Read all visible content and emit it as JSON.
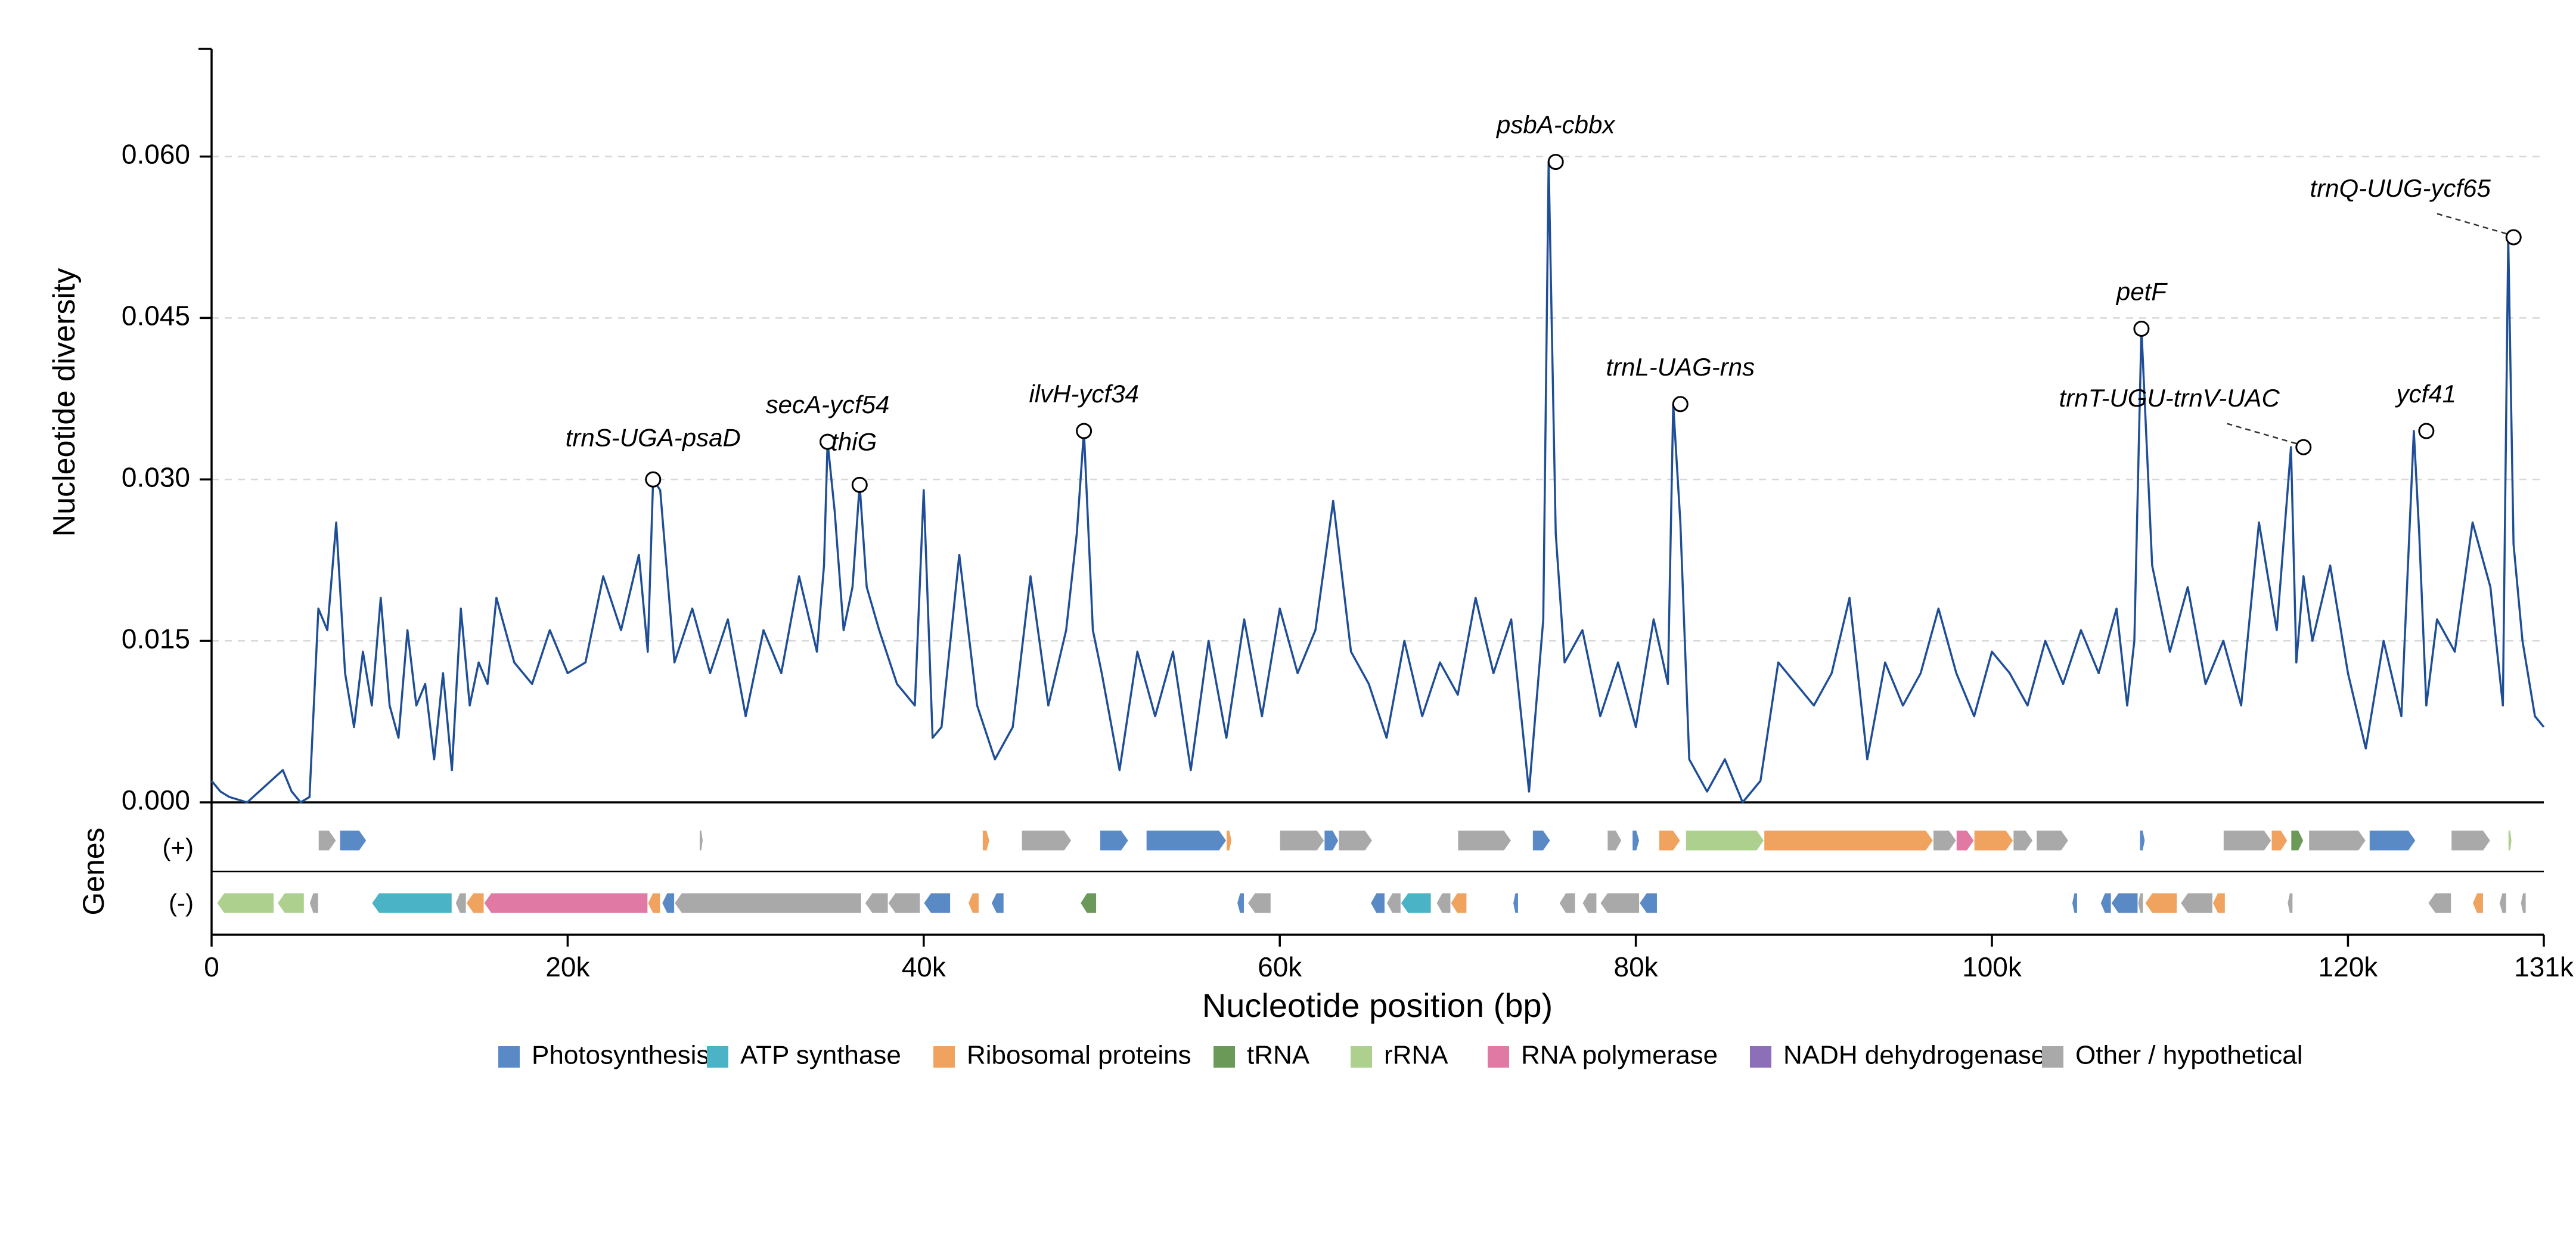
{
  "chart_data": {
    "type": "line",
    "ylabel": "Nucleotide diversity",
    "xlabel": "Nucleotide position (bp)",
    "genes_label": "Genes",
    "strand_plus_label": "(+)",
    "strand_minus_label": "(-)",
    "xlim": [
      0,
      131000
    ],
    "ylim": [
      0,
      0.07
    ],
    "y_ticks": [
      {
        "value": 0.0,
        "label": "0.000"
      },
      {
        "value": 0.015,
        "label": "0.015"
      },
      {
        "value": 0.03,
        "label": "0.030"
      },
      {
        "value": 0.045,
        "label": "0.045"
      },
      {
        "value": 0.06,
        "label": "0.060"
      }
    ],
    "x_ticks": [
      {
        "value": 0,
        "label": "0"
      },
      {
        "value": 20000,
        "label": "20k"
      },
      {
        "value": 40000,
        "label": "40k"
      },
      {
        "value": 60000,
        "label": "60k"
      },
      {
        "value": 80000,
        "label": "80k"
      },
      {
        "value": 100000,
        "label": "100k"
      },
      {
        "value": 120000,
        "label": "120k"
      },
      {
        "value": 131000,
        "label": "131k"
      }
    ],
    "grid": "horizontal-dashed",
    "line_color": "#1f4e96",
    "series": [
      {
        "x": [
          0,
          500,
          1000,
          2000,
          3000,
          4000,
          4500,
          5000,
          5500,
          6000,
          6500,
          7000,
          7500,
          8000,
          8500,
          9000,
          9500,
          10000,
          10500,
          11000,
          11500,
          12000,
          12500,
          13000,
          13500,
          14000,
          14500,
          15000,
          15500,
          16000,
          17000,
          18000,
          19000,
          20000,
          21000,
          22000,
          23000,
          24000,
          24500,
          24800,
          25200,
          26000,
          27000,
          28000,
          29000,
          30000,
          31000,
          32000,
          33000,
          34000,
          34400,
          34600,
          35000,
          35500,
          36000,
          36400,
          36800,
          37500,
          38500,
          39500,
          40000,
          40500,
          41000,
          42000,
          43000,
          44000,
          45000,
          46000,
          47000,
          48000,
          48600,
          49000,
          49500,
          50000,
          51000,
          52000,
          53000,
          54000,
          55000,
          56000,
          57000,
          58000,
          59000,
          60000,
          61000,
          62000,
          63000,
          64000,
          65000,
          66000,
          67000,
          68000,
          69000,
          70000,
          71000,
          72000,
          73000,
          74000,
          74800,
          75100,
          75500,
          76000,
          77000,
          78000,
          79000,
          80000,
          81000,
          81800,
          82100,
          82500,
          83000,
          84000,
          85000,
          86000,
          87000,
          88000,
          89000,
          90000,
          91000,
          92000,
          93000,
          94000,
          95000,
          96000,
          97000,
          98000,
          99000,
          100000,
          101000,
          102000,
          103000,
          104000,
          105000,
          106000,
          107000,
          107600,
          108000,
          108400,
          109000,
          110000,
          111000,
          112000,
          113000,
          114000,
          115000,
          116000,
          116800,
          117100,
          117500,
          118000,
          119000,
          120000,
          121000,
          122000,
          123000,
          123700,
          124000,
          124400,
          125000,
          126000,
          127000,
          128000,
          128700,
          129000,
          129300,
          129800,
          130500,
          131000
        ],
        "values": [
          0.002,
          0.001,
          0.0005,
          0.0,
          0.0015,
          0.003,
          0.001,
          0.0,
          0.0005,
          0.018,
          0.016,
          0.026,
          0.012,
          0.007,
          0.014,
          0.009,
          0.019,
          0.009,
          0.006,
          0.016,
          0.009,
          0.011,
          0.004,
          0.012,
          0.003,
          0.018,
          0.009,
          0.013,
          0.011,
          0.019,
          0.013,
          0.011,
          0.016,
          0.012,
          0.013,
          0.021,
          0.016,
          0.023,
          0.014,
          0.03,
          0.029,
          0.013,
          0.018,
          0.012,
          0.017,
          0.008,
          0.016,
          0.012,
          0.021,
          0.014,
          0.022,
          0.0335,
          0.027,
          0.016,
          0.02,
          0.0295,
          0.02,
          0.016,
          0.011,
          0.009,
          0.029,
          0.006,
          0.007,
          0.023,
          0.009,
          0.004,
          0.007,
          0.021,
          0.009,
          0.016,
          0.025,
          0.0345,
          0.016,
          0.012,
          0.003,
          0.014,
          0.008,
          0.014,
          0.003,
          0.015,
          0.006,
          0.017,
          0.008,
          0.018,
          0.012,
          0.016,
          0.028,
          0.014,
          0.011,
          0.006,
          0.015,
          0.008,
          0.013,
          0.01,
          0.019,
          0.012,
          0.017,
          0.001,
          0.017,
          0.0595,
          0.025,
          0.013,
          0.016,
          0.008,
          0.013,
          0.007,
          0.017,
          0.011,
          0.037,
          0.026,
          0.004,
          0.001,
          0.004,
          0.0,
          0.002,
          0.013,
          0.011,
          0.009,
          0.012,
          0.019,
          0.004,
          0.013,
          0.009,
          0.012,
          0.018,
          0.012,
          0.008,
          0.014,
          0.012,
          0.009,
          0.015,
          0.011,
          0.016,
          0.012,
          0.018,
          0.009,
          0.015,
          0.044,
          0.022,
          0.014,
          0.02,
          0.011,
          0.015,
          0.009,
          0.026,
          0.016,
          0.033,
          0.013,
          0.021,
          0.015,
          0.022,
          0.012,
          0.005,
          0.015,
          0.008,
          0.0345,
          0.025,
          0.009,
          0.017,
          0.014,
          0.026,
          0.02,
          0.009,
          0.0525,
          0.024,
          0.015,
          0.008,
          0.007
        ]
      }
    ],
    "annotations": [
      {
        "label": "trnS-UGA-psaD",
        "x": 24800,
        "y": 0.03,
        "leader": false
      },
      {
        "label": "secA-ycf54",
        "x": 34600,
        "y": 0.0335,
        "leader": false
      },
      {
        "label": "thiG",
        "x": 36400,
        "y": 0.0295,
        "leader": false
      },
      {
        "label": "ilvH-ycf34",
        "x": 49000,
        "y": 0.0345,
        "leader": false
      },
      {
        "label": "psbA-cbbx",
        "x": 75500,
        "y": 0.0595,
        "leader": false
      },
      {
        "label": "trnL-UAG-rns",
        "x": 82500,
        "y": 0.037,
        "leader": false
      },
      {
        "label": "petF",
        "x": 108400,
        "y": 0.044,
        "leader": false
      },
      {
        "label": "trnT-UGU-trnV-UAC",
        "x": 117500,
        "y": 0.033,
        "leader": true
      },
      {
        "label": "ycf41",
        "x": 124400,
        "y": 0.0345,
        "leader": false
      },
      {
        "label": "trnQ-UUG-ycf65",
        "x": 129300,
        "y": 0.0525,
        "leader": true
      }
    ],
    "legend": {
      "placement": "bottom-center",
      "entries": [
        {
          "name": "Photosynthesis",
          "color": "#5a8ac6"
        },
        {
          "name": "ATP synthase",
          "color": "#4bb3c6"
        },
        {
          "name": "Ribosomal proteins",
          "color": "#f0a35e"
        },
        {
          "name": "tRNA",
          "color": "#6b9a58"
        },
        {
          "name": "rRNA",
          "color": "#aed08f"
        },
        {
          "name": "RNA polymerase",
          "color": "#e07aa5"
        },
        {
          "name": "NADH dehydrogenase",
          "color": "#8c6fb8"
        },
        {
          "name": "Other / hypothetical",
          "color": "#a9a9a9"
        }
      ]
    },
    "genes_plus": [
      {
        "s": 6000,
        "e": 7000,
        "c": "Other / hypothetical"
      },
      {
        "s": 7200,
        "e": 8700,
        "c": "Photosynthesis"
      },
      {
        "s": 27400,
        "e": 27600,
        "c": "Other / hypothetical"
      },
      {
        "s": 43300,
        "e": 43700,
        "c": "Ribosomal proteins"
      },
      {
        "s": 45500,
        "e": 48300,
        "c": "Other / hypothetical"
      },
      {
        "s": 49900,
        "e": 51500,
        "c": "Photosynthesis"
      },
      {
        "s": 52500,
        "e": 57000,
        "c": "Photosynthesis"
      },
      {
        "s": 57000,
        "e": 57300,
        "c": "Ribosomal proteins"
      },
      {
        "s": 60000,
        "e": 62500,
        "c": "Other / hypothetical"
      },
      {
        "s": 62500,
        "e": 63300,
        "c": "Photosynthesis"
      },
      {
        "s": 63300,
        "e": 65200,
        "c": "Other / hypothetical"
      },
      {
        "s": 70000,
        "e": 73000,
        "c": "Other / hypothetical"
      },
      {
        "s": 74200,
        "e": 75200,
        "c": "Photosynthesis"
      },
      {
        "s": 78400,
        "e": 79200,
        "c": "Other / hypothetical"
      },
      {
        "s": 79800,
        "e": 80200,
        "c": "Photosynthesis"
      },
      {
        "s": 81300,
        "e": 82500,
        "c": "Ribosomal proteins"
      },
      {
        "s": 82800,
        "e": 87200,
        "c": "rRNA"
      },
      {
        "s": 87200,
        "e": 96700,
        "c": "Ribosomal proteins"
      },
      {
        "s": 96700,
        "e": 98000,
        "c": "Other / hypothetical"
      },
      {
        "s": 98000,
        "e": 99000,
        "c": "RNA polymerase"
      },
      {
        "s": 99000,
        "e": 101200,
        "c": "Ribosomal proteins"
      },
      {
        "s": 101200,
        "e": 102300,
        "c": "Other / hypothetical"
      },
      {
        "s": 102500,
        "e": 104300,
        "c": "Other / hypothetical"
      },
      {
        "s": 108300,
        "e": 108600,
        "c": "Photosynthesis"
      },
      {
        "s": 113000,
        "e": 115700,
        "c": "Other / hypothetical"
      },
      {
        "s": 115700,
        "e": 116600,
        "c": "Ribosomal proteins"
      },
      {
        "s": 116800,
        "e": 117500,
        "c": "tRNA"
      },
      {
        "s": 117800,
        "e": 121000,
        "c": "Other / hypothetical"
      },
      {
        "s": 121200,
        "e": 123800,
        "c": "Photosynthesis"
      },
      {
        "s": 125800,
        "e": 128000,
        "c": "Other / hypothetical"
      },
      {
        "s": 129000,
        "e": 129200,
        "c": "rRNA"
      }
    ],
    "genes_minus": [
      {
        "s": 300,
        "e": 3500,
        "c": "rRNA"
      },
      {
        "s": 3700,
        "e": 5200,
        "c": "rRNA"
      },
      {
        "s": 5500,
        "e": 6000,
        "c": "Other / hypothetical"
      },
      {
        "s": 9000,
        "e": 13500,
        "c": "ATP synthase"
      },
      {
        "s": 13700,
        "e": 14300,
        "c": "Other / hypothetical"
      },
      {
        "s": 14300,
        "e": 15300,
        "c": "Ribosomal proteins"
      },
      {
        "s": 15300,
        "e": 24500,
        "c": "RNA polymerase"
      },
      {
        "s": 24500,
        "e": 25200,
        "c": "Ribosomal proteins"
      },
      {
        "s": 25300,
        "e": 26000,
        "c": "Photosynthesis"
      },
      {
        "s": 26000,
        "e": 36500,
        "c": "Other / hypothetical"
      },
      {
        "s": 36700,
        "e": 38000,
        "c": "Other / hypothetical"
      },
      {
        "s": 38000,
        "e": 39800,
        "c": "Other / hypothetical"
      },
      {
        "s": 40000,
        "e": 41500,
        "c": "Photosynthesis"
      },
      {
        "s": 42500,
        "e": 43100,
        "c": "Ribosomal proteins"
      },
      {
        "s": 43800,
        "e": 44500,
        "c": "Photosynthesis"
      },
      {
        "s": 48800,
        "e": 49700,
        "c": "tRNA"
      },
      {
        "s": 57600,
        "e": 58000,
        "c": "Photosynthesis"
      },
      {
        "s": 58200,
        "e": 59500,
        "c": "Other / hypothetical"
      },
      {
        "s": 65100,
        "e": 65900,
        "c": "Photosynthesis"
      },
      {
        "s": 66000,
        "e": 66800,
        "c": "Other / hypothetical"
      },
      {
        "s": 66800,
        "e": 68500,
        "c": "ATP synthase"
      },
      {
        "s": 68800,
        "e": 69600,
        "c": "Other / hypothetical"
      },
      {
        "s": 69600,
        "e": 70500,
        "c": "Ribosomal proteins"
      },
      {
        "s": 73100,
        "e": 73400,
        "c": "Photosynthesis"
      },
      {
        "s": 75700,
        "e": 76600,
        "c": "Other / hypothetical"
      },
      {
        "s": 77000,
        "e": 77800,
        "c": "Other / hypothetical"
      },
      {
        "s": 78000,
        "e": 80200,
        "c": "Other / hypothetical"
      },
      {
        "s": 80200,
        "e": 81200,
        "c": "Photosynthesis"
      },
      {
        "s": 104500,
        "e": 104800,
        "c": "Photosynthesis"
      },
      {
        "s": 106100,
        "e": 106700,
        "c": "Photosynthesis"
      },
      {
        "s": 106700,
        "e": 108200,
        "c": "Photosynthesis"
      },
      {
        "s": 108200,
        "e": 108500,
        "c": "Other / hypothetical"
      },
      {
        "s": 108600,
        "e": 110400,
        "c": "Ribosomal proteins"
      },
      {
        "s": 110600,
        "e": 112400,
        "c": "Other / hypothetical"
      },
      {
        "s": 112400,
        "e": 113100,
        "c": "Ribosomal proteins"
      },
      {
        "s": 116600,
        "e": 116900,
        "c": "Other / hypothetical"
      },
      {
        "s": 124500,
        "e": 125800,
        "c": "Other / hypothetical"
      },
      {
        "s": 127000,
        "e": 127600,
        "c": "Ribosomal proteins"
      },
      {
        "s": 128500,
        "e": 128900,
        "c": "Other / hypothetical"
      },
      {
        "s": 129700,
        "e": 130000,
        "c": "Other / hypothetical"
      }
    ]
  }
}
